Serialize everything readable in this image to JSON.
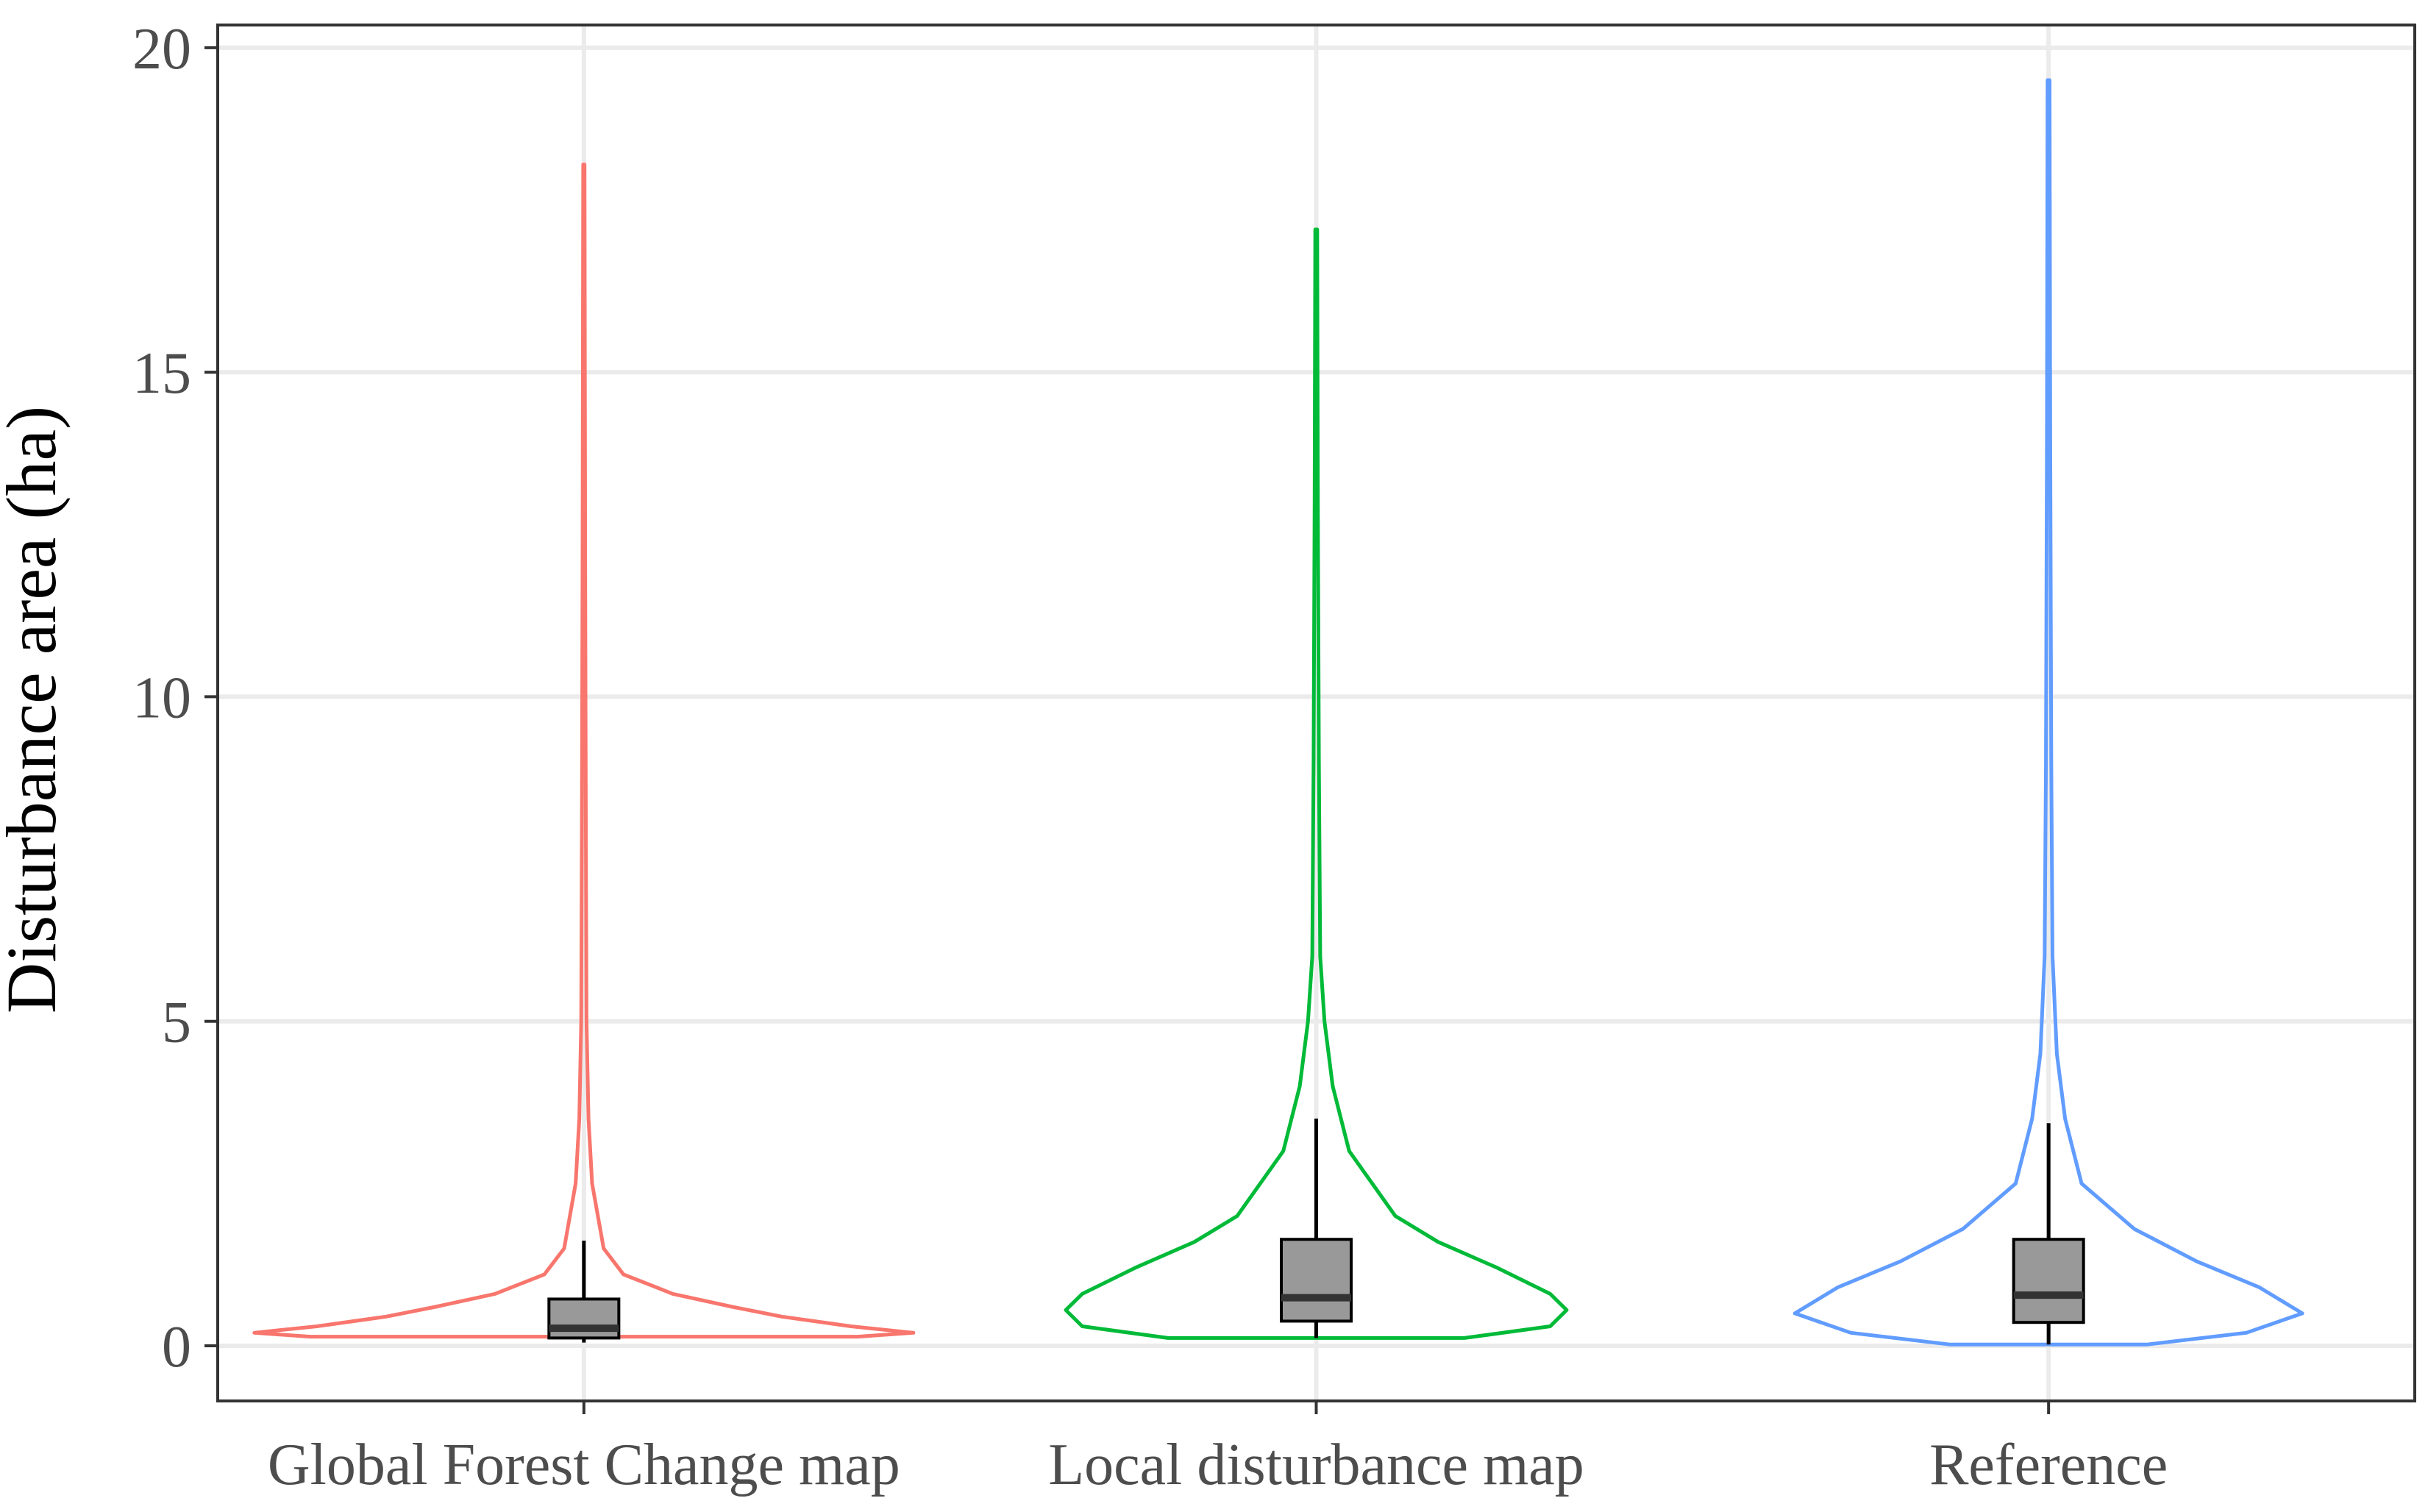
{
  "chart_data": {
    "type": "violin",
    "categories": [
      "Global Forest Change map",
      "Local disturbance map",
      "Reference"
    ],
    "xlabel": "",
    "ylabel": "Disturbance area (ha)",
    "ylim": [
      -0.85,
      20.35
    ],
    "yticks": [
      0,
      5,
      10,
      15,
      20
    ],
    "grid": true,
    "legend": "none",
    "series": [
      {
        "category": "Global Forest Change map",
        "color": "#F8766D",
        "max": 18.2,
        "density": [
          [
            0.14,
            0.83
          ],
          [
            0.2,
            1.0
          ],
          [
            0.3,
            0.81
          ],
          [
            0.45,
            0.6
          ],
          [
            0.6,
            0.45
          ],
          [
            0.8,
            0.27
          ],
          [
            1.1,
            0.12
          ],
          [
            1.5,
            0.06
          ],
          [
            2.5,
            0.025
          ],
          [
            3.5,
            0.014
          ],
          [
            5,
            0.008
          ],
          [
            8,
            0.006
          ],
          [
            12,
            0.004
          ],
          [
            18.2,
            0.002
          ]
        ],
        "box": {
          "q1": 0.12,
          "median": 0.27,
          "q3": 0.72,
          "whisker_low": 0.05,
          "whisker_high": 1.62
        }
      },
      {
        "category": "Local disturbance map",
        "color": "#00BA38",
        "max": 17.2,
        "density": [
          [
            0.12,
            0.45
          ],
          [
            0.3,
            0.71
          ],
          [
            0.55,
            0.76
          ],
          [
            0.8,
            0.71
          ],
          [
            1.2,
            0.55
          ],
          [
            1.6,
            0.37
          ],
          [
            2.0,
            0.24
          ],
          [
            3.0,
            0.1
          ],
          [
            4.0,
            0.05
          ],
          [
            5.0,
            0.025
          ],
          [
            6.0,
            0.012
          ],
          [
            9,
            0.008
          ],
          [
            13,
            0.005
          ],
          [
            17.2,
            0.003
          ]
        ],
        "box": {
          "q1": 0.38,
          "median": 0.74,
          "q3": 1.64,
          "whisker_low": 0.12,
          "whisker_high": 3.5
        }
      },
      {
        "category": "Reference",
        "color": "#619CFF",
        "max": 19.5,
        "density": [
          [
            0.02,
            0.3
          ],
          [
            0.2,
            0.6
          ],
          [
            0.5,
            0.77
          ],
          [
            0.9,
            0.64
          ],
          [
            1.3,
            0.45
          ],
          [
            1.8,
            0.26
          ],
          [
            2.5,
            0.1
          ],
          [
            3.5,
            0.05
          ],
          [
            4.5,
            0.025
          ],
          [
            6.0,
            0.012
          ],
          [
            9,
            0.008
          ],
          [
            14,
            0.005
          ],
          [
            19.5,
            0.003
          ]
        ],
        "box": {
          "q1": 0.36,
          "median": 0.78,
          "q3": 1.64,
          "whisker_low": 0.02,
          "whisker_high": 3.43
        }
      }
    ]
  }
}
